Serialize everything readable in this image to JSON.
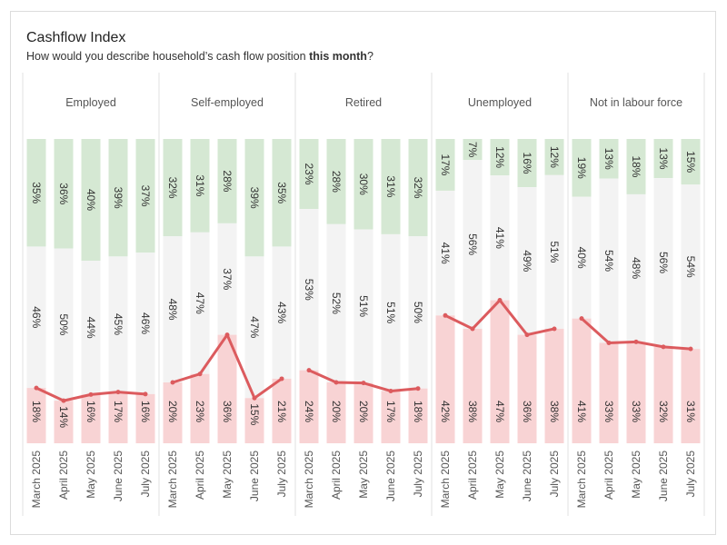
{
  "title": "Cashflow Index",
  "subtitle_pre": "How would you describe household’s cash flow position ",
  "subtitle_bold": "this month",
  "subtitle_post": "?",
  "colors": {
    "positive": "#d5e8d3",
    "neutral": "#f3f3f3",
    "negative": "#f8d3d4",
    "line": "#dc5b5e",
    "divider": "#e2e2e2"
  },
  "chart_data": {
    "type": "bar",
    "stacked": true,
    "normalized": true,
    "months": [
      "March 2025",
      "April 2025",
      "May 2025",
      "June 2025",
      "July 2025"
    ],
    "groups": [
      {
        "name": "Employed",
        "top": [
          35,
          36,
          40,
          39,
          37
        ],
        "middle": [
          46,
          50,
          44,
          45,
          46
        ],
        "bottom": [
          18,
          14,
          16,
          17,
          16
        ]
      },
      {
        "name": "Self-employed",
        "top": [
          32,
          31,
          28,
          39,
          35
        ],
        "middle": [
          48,
          47,
          37,
          47,
          43
        ],
        "bottom": [
          20,
          23,
          36,
          15,
          21
        ]
      },
      {
        "name": "Retired",
        "top": [
          23,
          28,
          30,
          31,
          32
        ],
        "middle": [
          53,
          52,
          51,
          51,
          50
        ],
        "bottom": [
          24,
          20,
          20,
          17,
          18
        ]
      },
      {
        "name": "Unemployed",
        "top": [
          17,
          7,
          12,
          16,
          12
        ],
        "middle": [
          41,
          56,
          41,
          49,
          51
        ],
        "bottom": [
          42,
          38,
          47,
          36,
          38
        ]
      },
      {
        "name": "Not in labour force",
        "top": [
          19,
          13,
          18,
          13,
          15
        ],
        "middle": [
          40,
          54,
          48,
          56,
          54
        ],
        "bottom": [
          41,
          33,
          33,
          32,
          31
        ]
      }
    ],
    "line_series": "bottom",
    "value_suffix": "%"
  }
}
